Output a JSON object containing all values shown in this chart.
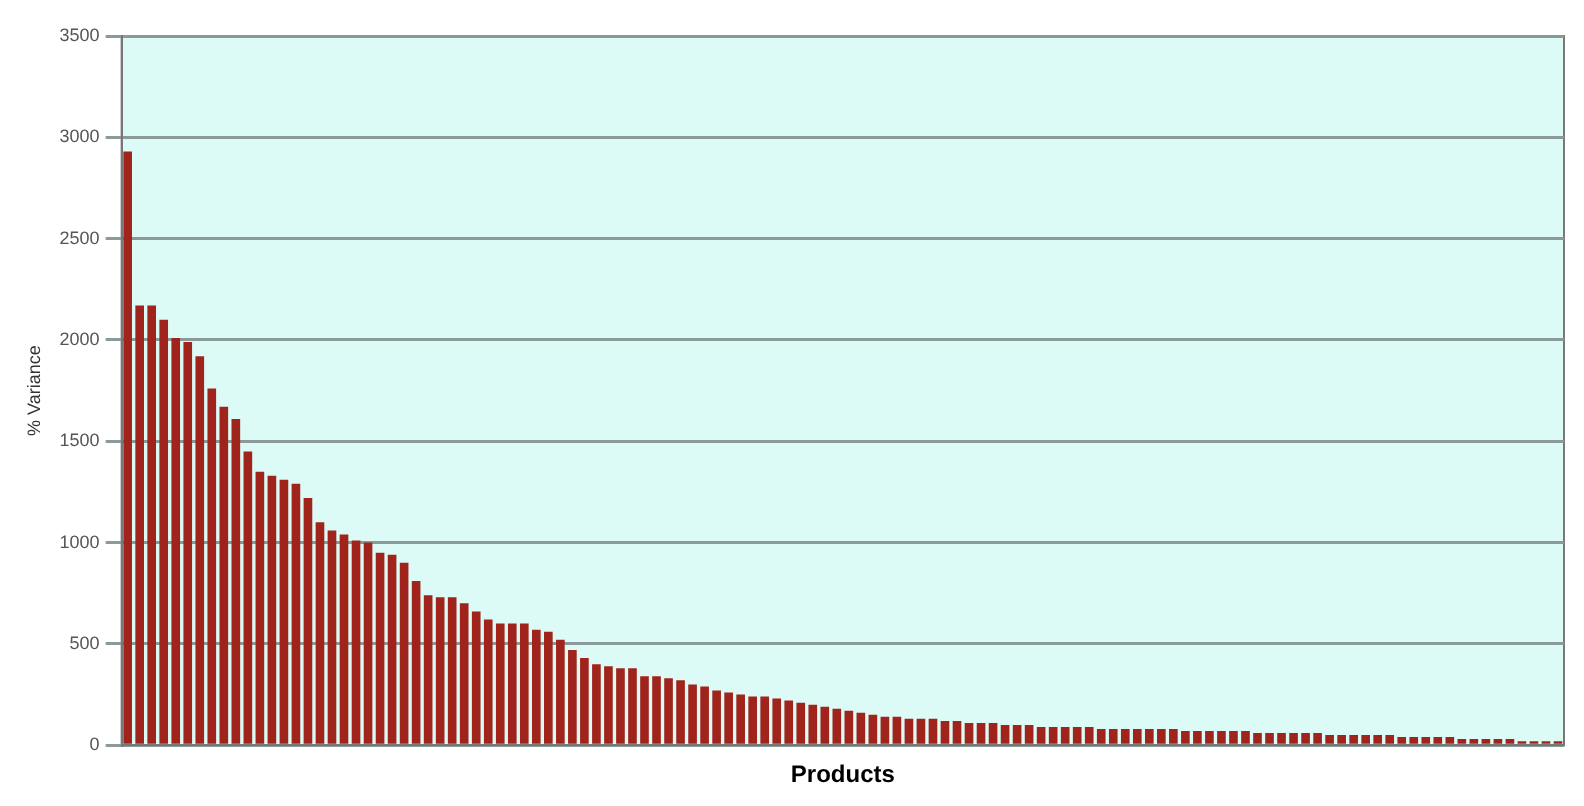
{
  "chart_data": {
    "type": "bar",
    "xlabel": "Products",
    "ylabel": "% Variance",
    "categories": [
      null,
      null,
      null,
      null,
      null,
      null,
      null,
      null,
      null,
      null,
      null,
      null,
      null,
      null,
      null,
      null,
      null,
      null,
      null,
      null,
      null,
      null,
      null,
      null,
      null,
      null,
      null,
      null,
      null,
      null,
      null,
      null,
      null,
      null,
      null,
      null,
      null,
      null,
      null,
      null,
      null,
      null,
      null,
      null,
      null,
      null,
      null,
      null,
      null,
      null,
      null,
      null,
      null,
      null,
      null,
      null,
      null,
      null,
      null,
      null,
      null,
      null,
      null,
      null,
      null,
      null,
      null,
      null,
      null,
      null,
      null,
      null,
      null,
      null,
      null,
      null,
      null,
      null,
      null,
      null,
      null,
      null,
      null,
      null,
      null,
      null,
      null,
      null,
      null,
      null,
      null,
      null,
      null,
      null,
      null,
      null,
      null,
      null,
      null,
      null,
      null,
      null,
      null,
      null,
      null,
      null,
      null,
      null,
      null,
      null,
      null,
      null,
      null,
      null,
      null,
      null,
      null,
      null,
      null,
      null
    ],
    "values": [
      2930,
      2170,
      2170,
      2100,
      2010,
      1990,
      1920,
      1760,
      1670,
      1610,
      1450,
      1350,
      1330,
      1310,
      1290,
      1220,
      1100,
      1060,
      1040,
      1010,
      1000,
      950,
      940,
      900,
      810,
      740,
      730,
      730,
      700,
      660,
      620,
      600,
      600,
      600,
      570,
      560,
      520,
      470,
      430,
      400,
      390,
      380,
      380,
      340,
      340,
      330,
      320,
      300,
      290,
      270,
      260,
      250,
      240,
      240,
      230,
      220,
      210,
      200,
      190,
      180,
      170,
      160,
      150,
      140,
      140,
      130,
      130,
      130,
      120,
      120,
      110,
      110,
      110,
      100,
      100,
      100,
      90,
      90,
      90,
      90,
      90,
      80,
      80,
      80,
      80,
      80,
      80,
      80,
      70,
      70,
      70,
      70,
      70,
      70,
      60,
      60,
      60,
      60,
      60,
      60,
      50,
      50,
      50,
      50,
      50,
      50,
      40,
      40,
      40,
      40,
      40,
      30,
      30,
      30,
      30,
      30,
      20,
      20,
      20,
      20
    ],
    "color": "#a0241c",
    "ylim": [
      0,
      3500
    ],
    "yticks": [
      0,
      500,
      1000,
      1500,
      2000,
      2500,
      3000,
      3500
    ],
    "grid": "y",
    "legend": false
  }
}
